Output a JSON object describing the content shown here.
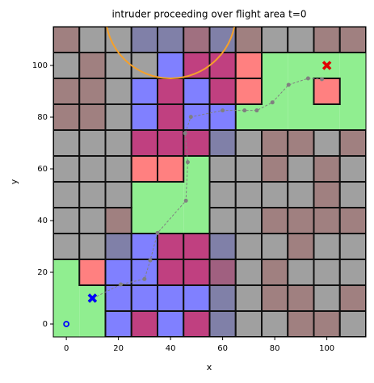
{
  "chart_data": {
    "type": "grid-map",
    "title": "intruder proceeding over flight area t=0",
    "x_label": "x",
    "y_label": "y",
    "xlim": [
      -5,
      115
    ],
    "ylim": [
      -5,
      115
    ],
    "xticks": [
      0,
      20,
      40,
      60,
      80,
      100
    ],
    "yticks": [
      0,
      20,
      40,
      60,
      80,
      100
    ],
    "cell_x": [
      0,
      10,
      20,
      30,
      40,
      50,
      60,
      70,
      80,
      90,
      100,
      110
    ],
    "cell_y": [
      110,
      100,
      90,
      80,
      70,
      60,
      50,
      40,
      30,
      20,
      10,
      0
    ],
    "open_color": "#90ee90",
    "cells": [
      [
        "#a08080",
        "#a0a0a0",
        "#a0a0a0",
        "#8080a8",
        "#8080a8",
        "#a07080",
        "#8080a8",
        "#a08080",
        "#a0a0a0",
        "#a0a0a0",
        "#a08080",
        "#a08080"
      ],
      [
        "#a0a0a0",
        "#a08080",
        "#a0a0a0",
        "#a0a0a0",
        "#8080ff",
        "#c04080",
        "#c04080",
        "#ff8080",
        "#90ee90",
        "#90ee90",
        "#90ee90",
        "#90ee90"
      ],
      [
        "#a08080",
        "#a08080",
        "#a0a0a0",
        "#8080ff",
        "#c04080",
        "#8080ff",
        "#c04080",
        "#ff8080",
        "#90ee90",
        "#90ee90",
        "#ff8080",
        "#90ee90"
      ],
      [
        "#a08080",
        "#a08080",
        "#a0a0a0",
        "#8080ff",
        "#c04080",
        "#8080ff",
        "#8080ff",
        "#90ee90",
        "#90ee90",
        "#90ee90",
        "#90ee90",
        "#90ee90"
      ],
      [
        "#a0a0a0",
        "#a0a0a0",
        "#a0a0a0",
        "#c04080",
        "#c04080",
        "#c04080",
        "#8080a8",
        "#a0a0a0",
        "#a08080",
        "#a08080",
        "#a0a0a0",
        "#a08080"
      ],
      [
        "#a0a0a0",
        "#a0a0a0",
        "#a0a0a0",
        "#ff8080",
        "#ff8080",
        "#90ee90",
        "#a0a0a0",
        "#a0a0a0",
        "#a08080",
        "#a0a0a0",
        "#a08080",
        "#a0a0a0"
      ],
      [
        "#a0a0a0",
        "#a0a0a0",
        "#a0a0a0",
        "#90ee90",
        "#90ee90",
        "#90ee90",
        "#a0a0a0",
        "#a0a0a0",
        "#a0a0a0",
        "#a0a0a0",
        "#a08080",
        "#a0a0a0"
      ],
      [
        "#a0a0a0",
        "#a0a0a0",
        "#a08080",
        "#90ee90",
        "#90ee90",
        "#90ee90",
        "#a0a0a0",
        "#a0a0a0",
        "#a08080",
        "#a08080",
        "#a08080",
        "#a08080"
      ],
      [
        "#a0a0a0",
        "#a0a0a0",
        "#8080a8",
        "#8080ff",
        "#c04080",
        "#c04080",
        "#8080a8",
        "#a0a0a0",
        "#a0a0a0",
        "#a08080",
        "#a0a0a0",
        "#a0a0a0"
      ],
      [
        "#90ee90",
        "#ff8080",
        "#8080ff",
        "#8080ff",
        "#c04080",
        "#c04080",
        "#a06080",
        "#a0a0a0",
        "#a08080",
        "#a0a0a0",
        "#a0a0a0",
        "#a0a0a0"
      ],
      [
        "#90ee90",
        "#90ee90",
        "#8080ff",
        "#8080ff",
        "#8080ff",
        "#8080ff",
        "#8080a8",
        "#a0a0a0",
        "#a08080",
        "#a08080",
        "#a0a0a0",
        "#a08080"
      ],
      [
        "#90ee90",
        "#90ee90",
        "#8080ff",
        "#c04080",
        "#8080ff",
        "#c04080",
        "#8080a8",
        "#a0a0a0",
        "#a0a0a0",
        "#a08080",
        "#a08080",
        "#a0a0a0"
      ]
    ],
    "zone": {
      "center": [
        40,
        120
      ],
      "radius": 25,
      "color": "#f5a02a"
    },
    "path": {
      "color": "#808080",
      "x": [
        10.3,
        20.9,
        30,
        32.2,
        35,
        45.9,
        46.6,
        45.6,
        47.8,
        60,
        68.4,
        73.1,
        79.1,
        85.3,
        92.8,
        98.1
      ],
      "y": [
        10,
        15.3,
        17.4,
        24.6,
        35.2,
        47.7,
        62.6,
        73.8,
        80.1,
        82.6,
        82.6,
        82.6,
        85.7,
        92.5,
        95,
        94.7
      ]
    },
    "markers": [
      {
        "shape": "circle",
        "x": 0,
        "y": 0,
        "color": "#0000ff"
      },
      {
        "shape": "x",
        "x": 10,
        "y": 10,
        "color": "#008000"
      },
      {
        "shape": "x",
        "x": 10,
        "y": 10,
        "color": "#0000ff"
      },
      {
        "shape": "x",
        "x": 100,
        "y": 100,
        "color": "#e00000"
      }
    ]
  }
}
